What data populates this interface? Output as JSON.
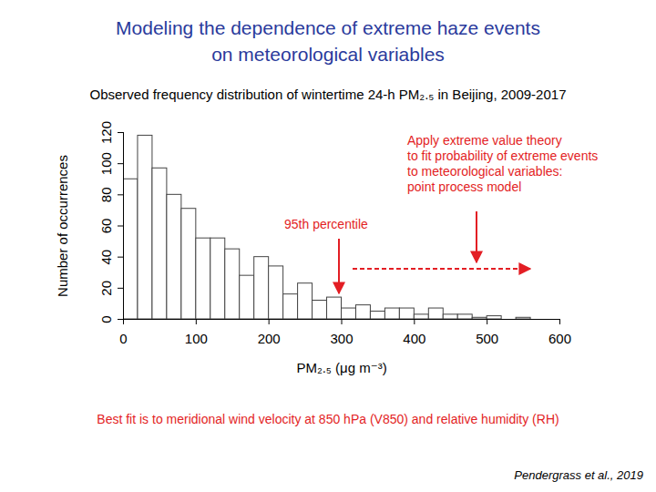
{
  "chart_data": {
    "type": "histogram",
    "title": "Modeling the dependence of extreme haze events\non meteorological variables",
    "subtitle": "Observed frequency distribution of wintertime 24-h PM₂.₅ in Beijing, 2009-2017",
    "x_label": "PM₂.₅ (μg m⁻³)",
    "y_label": "Number of occurrences",
    "bins": [
      0,
      20,
      40,
      60,
      80,
      100,
      120,
      140,
      160,
      180,
      200,
      220,
      240,
      260,
      280,
      300,
      320,
      340,
      360,
      380,
      400,
      420,
      440,
      460,
      480,
      500,
      520,
      540,
      560,
      580
    ],
    "values": [
      90,
      118,
      97,
      80,
      71,
      52,
      52,
      45,
      28,
      40,
      34,
      16,
      23,
      12,
      14,
      7,
      9,
      5,
      7,
      7,
      3,
      7,
      3,
      3,
      1,
      2,
      0,
      1,
      0
    ],
    "color": "#ffffff",
    "xlim": [
      0,
      600
    ],
    "xticks": [
      0,
      100,
      200,
      300,
      400,
      500,
      600
    ],
    "ylim": [
      0,
      120
    ],
    "yticks": [
      0,
      20,
      40,
      60,
      80,
      100,
      120
    ],
    "grid": false,
    "annotation": "Apply extreme value theory\nto fit probability of extreme events\nto meteorological variables:\npoint process model",
    "percentile_label": "95th percentile",
    "note": "Best fit is to meridional wind velocity at 850 hPa (V850) and relative humidity (RH)",
    "source": "Pendergrass et al., 2019"
  }
}
